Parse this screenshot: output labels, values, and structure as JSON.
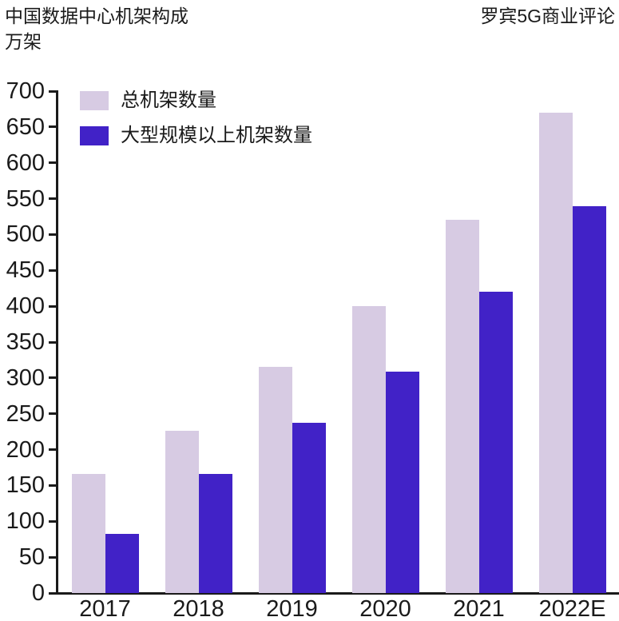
{
  "header": {
    "title": "中国数据中心机架构成",
    "unit": "万架",
    "source": "罗宾5G商业评论"
  },
  "legend": {
    "items": [
      {
        "label": "总机架数量",
        "slug": "total",
        "color": "#d7cbe3"
      },
      {
        "label": "大型规模以上机架数量",
        "slug": "large",
        "color": "#4122c7"
      }
    ]
  },
  "chart_data": {
    "type": "bar",
    "title": "中国数据中心机架构成",
    "unit_label": "万架",
    "source": "罗宾5G商业评论",
    "categories": [
      "2017",
      "2018",
      "2019",
      "2020",
      "2021",
      "2022E"
    ],
    "series": [
      {
        "name": "总机架数量",
        "slug": "total",
        "color": "#d7cbe3",
        "values": [
          166,
          226,
          315,
          400,
          520,
          670
        ]
      },
      {
        "name": "大型规模以上机架数量",
        "slug": "large",
        "color": "#4122c7",
        "values": [
          83,
          166,
          237,
          309,
          420,
          540
        ]
      }
    ],
    "xlabel": "",
    "ylabel": "万架",
    "ylim": [
      0,
      700
    ],
    "ytick_step": 50,
    "grid": false,
    "legend_position": "top-left"
  },
  "colors": {
    "text": "#1a1a1a",
    "axis": "#1a1a1a",
    "background": "#ffffff"
  }
}
